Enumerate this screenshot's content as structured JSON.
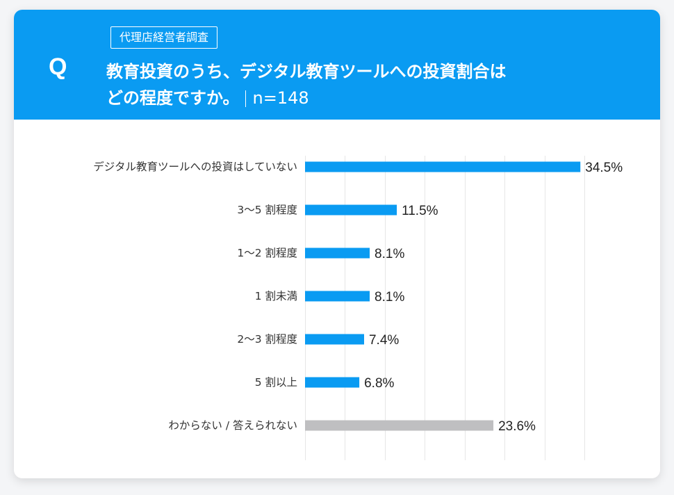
{
  "header": {
    "q_mark": "Q",
    "survey_tag": "代理店経営者調査",
    "question_line1": "教育投資のうち、デジタル教育ツールへの投資割合は",
    "question_line2": "どの程度ですか。",
    "sample_size": "n=148"
  },
  "colors": {
    "header_bg": "#0a9bf2",
    "bar_primary": "#0a9bf2",
    "bar_neutral": "#bfbfc1",
    "grid": "#e6e6e6",
    "label_text": "#333333"
  },
  "chart_data": {
    "type": "bar",
    "orientation": "horizontal",
    "categories": [
      "デジタル教育ツールへの投資はしていない",
      "3〜5 割程度",
      "1〜2 割程度",
      "1 割未満",
      "2〜3 割程度",
      "5 割以上",
      "わからない / 答えられない"
    ],
    "values": [
      34.5,
      11.5,
      8.1,
      8.1,
      7.4,
      6.8,
      23.6
    ],
    "value_labels": [
      "34.5%",
      "11.5%",
      "8.1%",
      "8.1%",
      "7.4%",
      "6.8%",
      "23.6%"
    ],
    "highlight": [
      true,
      true,
      true,
      true,
      true,
      true,
      false
    ],
    "xlim": [
      0,
      35
    ],
    "x_grid_step": 5,
    "grid": true,
    "title": "",
    "xlabel": "",
    "ylabel": ""
  }
}
